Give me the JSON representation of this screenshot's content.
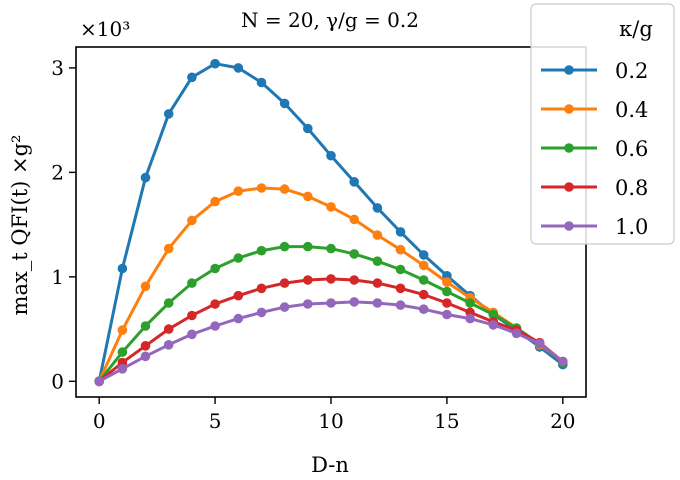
{
  "chart_data": {
    "type": "line",
    "title": "N = 20, γ/g = 0.2",
    "xlabel": "D-n",
    "ylabel": "max_t QFI(t) ×g²",
    "y_multiplier": "×10³",
    "xlim": [
      -1,
      21
    ],
    "ylim": [
      -0.15,
      3.2
    ],
    "x_ticks": [
      0,
      5,
      10,
      15,
      20
    ],
    "y_ticks": [
      0,
      1,
      2,
      3
    ],
    "legend_title": "κ/g",
    "legend_location": "top-right, outside axes",
    "x": [
      0,
      1,
      2,
      3,
      4,
      5,
      6,
      7,
      8,
      9,
      10,
      11,
      12,
      13,
      14,
      15,
      16,
      17,
      18,
      19,
      20
    ],
    "series": [
      {
        "name": "0.2",
        "color": "#1f77b4",
        "values": [
          0.0,
          1.08,
          1.95,
          2.56,
          2.91,
          3.04,
          3.0,
          2.86,
          2.66,
          2.42,
          2.16,
          1.91,
          1.66,
          1.43,
          1.21,
          1.01,
          0.82,
          0.64,
          0.49,
          0.33,
          0.16
        ]
      },
      {
        "name": "0.4",
        "color": "#ff7f0e",
        "values": [
          0.0,
          0.49,
          0.91,
          1.27,
          1.54,
          1.72,
          1.82,
          1.85,
          1.84,
          1.77,
          1.67,
          1.55,
          1.4,
          1.26,
          1.11,
          0.95,
          0.8,
          0.66,
          0.51,
          0.35,
          0.19
        ]
      },
      {
        "name": "0.6",
        "color": "#2ca02c",
        "values": [
          0.0,
          0.28,
          0.53,
          0.75,
          0.94,
          1.08,
          1.18,
          1.25,
          1.29,
          1.29,
          1.27,
          1.22,
          1.15,
          1.07,
          0.97,
          0.86,
          0.75,
          0.64,
          0.51,
          0.36,
          0.18
        ]
      },
      {
        "name": "0.8",
        "color": "#d62728",
        "values": [
          0.0,
          0.18,
          0.34,
          0.5,
          0.63,
          0.74,
          0.82,
          0.89,
          0.94,
          0.97,
          0.98,
          0.97,
          0.94,
          0.89,
          0.83,
          0.75,
          0.66,
          0.57,
          0.49,
          0.37,
          0.19
        ]
      },
      {
        "name": "1.0",
        "color": "#9467bd",
        "values": [
          0.0,
          0.12,
          0.24,
          0.35,
          0.45,
          0.53,
          0.6,
          0.66,
          0.71,
          0.74,
          0.75,
          0.76,
          0.75,
          0.73,
          0.69,
          0.64,
          0.6,
          0.54,
          0.46,
          0.36,
          0.19
        ]
      }
    ]
  }
}
